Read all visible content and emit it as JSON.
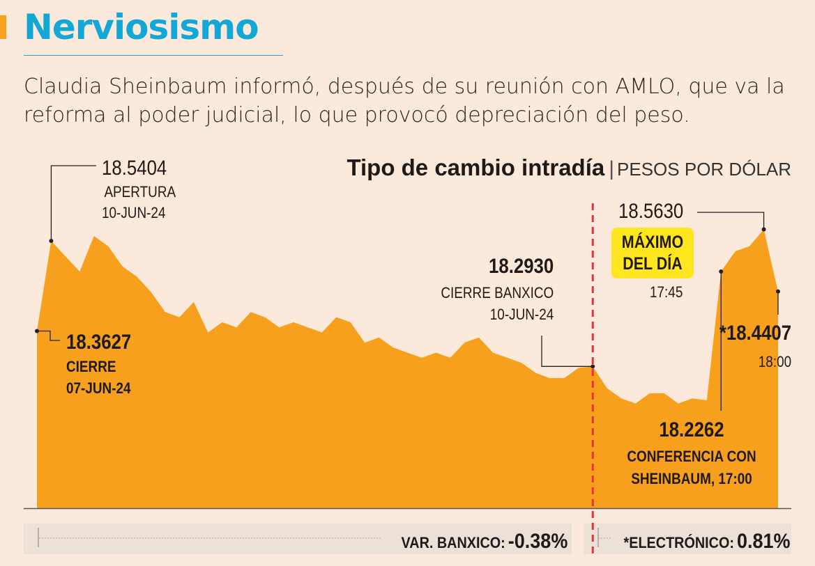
{
  "header": {
    "title": "Nerviosismo",
    "subtitle": "Claudia Sheinbaum informó, después de su reunión con AMLO, que va la reforma al poder judicial, lo que provocó depreciación del peso."
  },
  "colors": {
    "accent": "#f5a31a",
    "title": "#13a7d6",
    "area": "#f6a01e",
    "dashed_line": "#e8323a",
    "badge": "#ffe61e"
  },
  "chart_data": {
    "type": "area",
    "title": "Tipo de cambio intradía",
    "unit": "PESOS POR DÓLAR",
    "ylim": [
      17.2,
      18.7
    ],
    "values": [
      18.3627,
      18.5404,
      18.51,
      18.48,
      18.55,
      18.53,
      18.49,
      18.47,
      18.44,
      18.4,
      18.39,
      18.42,
      18.36,
      18.38,
      18.37,
      18.4,
      18.39,
      18.37,
      18.38,
      18.37,
      18.36,
      18.39,
      18.38,
      18.34,
      18.35,
      18.33,
      18.32,
      18.31,
      18.32,
      18.31,
      18.34,
      18.35,
      18.32,
      18.31,
      18.3,
      18.28,
      18.27,
      18.27,
      18.29,
      18.293,
      18.25,
      18.23,
      18.22,
      18.24,
      18.24,
      18.22,
      18.23,
      18.2262,
      18.48,
      18.52,
      18.53,
      18.563,
      18.4407
    ],
    "split_index": 39,
    "annotations": {
      "apertura": {
        "value": "18.5404",
        "label": "APERTURA",
        "date": "10-JUN-24"
      },
      "cierre": {
        "value": "18.3627",
        "label": "CIERRE",
        "date": "07-JUN-24"
      },
      "cierre_banxico": {
        "value": "18.2930",
        "label": "CIERRE BANXICO",
        "date": "10-JUN-24"
      },
      "maximo": {
        "value": "18.5630",
        "label_line1": "MÁXIMO",
        "label_line2": "DEL DÍA",
        "time": "17:45"
      },
      "electronico": {
        "value": "*18.4407",
        "time": "18:00"
      },
      "conferencia": {
        "value": "18.2262",
        "label_line1": "CONFERENCIA CON",
        "label_line2": "SHEINBAUM, 17:00"
      }
    }
  },
  "footer": {
    "banxico_label": "VAR. BANXICO:",
    "banxico_value": "-0.38%",
    "electronico_label": "*ELECTRÓNICO:",
    "electronico_value": "0.81%"
  }
}
